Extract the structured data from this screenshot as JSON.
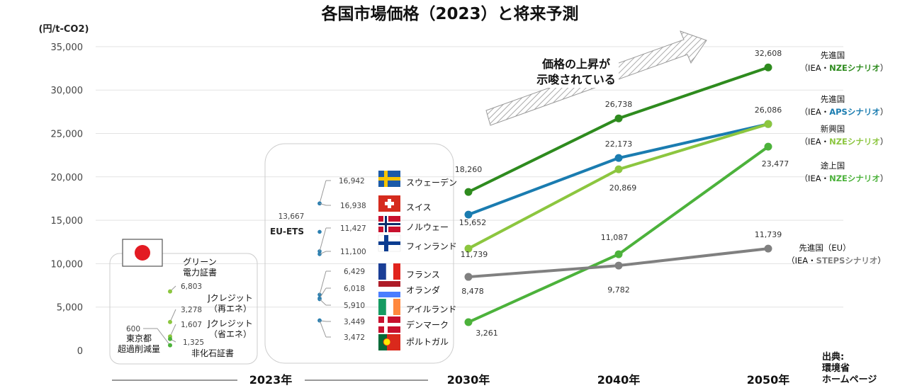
{
  "chart_data": {
    "type": "line",
    "title": "各国市場価格（2023）と将来予測",
    "unit_label": "(円/t-CO2)",
    "ylim": [
      0,
      35000
    ],
    "yticks": [
      "35,000",
      "30,000",
      "25,000",
      "20,000",
      "15,000",
      "10,000",
      "5,000",
      "0"
    ],
    "categories": [
      "2023年",
      "2030年",
      "2040年",
      "2050年"
    ],
    "series": [
      {
        "name": "先進国（IEA・NZEシナリオ）",
        "name_parts": [
          "先進国",
          "（IEA・",
          "NZEシナリオ",
          "）"
        ],
        "color": "#2e8b1e",
        "x": [
          "2030年",
          "2040年",
          "2050年"
        ],
        "values": [
          18260,
          26738,
          32608
        ],
        "labels": [
          "18,260",
          "26,738",
          "32,608"
        ]
      },
      {
        "name": "先進国（IEA・APSシナリオ）",
        "name_parts": [
          "先進国",
          "（IEA・",
          "APSシナリオ",
          "）"
        ],
        "color": "#1a7cb0",
        "x": [
          "2030年",
          "2040年",
          "2050年"
        ],
        "values": [
          15652,
          22173,
          26086
        ],
        "labels": [
          "15,652",
          "22,173",
          "26,086"
        ]
      },
      {
        "name": "新興国（IEA・NZEシナリオ）",
        "name_parts": [
          "新興国",
          "（IEA・",
          "NZEシナリオ",
          "）"
        ],
        "color": "#8cc63f",
        "x": [
          "2030年",
          "2040年",
          "2050年"
        ],
        "values": [
          11739,
          20869,
          26086
        ],
        "labels": [
          "11,739",
          "20,869",
          ""
        ]
      },
      {
        "name": "途上国（IEA・NZEシナリオ）",
        "name_parts": [
          "途上国",
          "（IEA・",
          "NZEシナリオ",
          "）"
        ],
        "color": "#4cb23b",
        "x": [
          "2030年",
          "2040年",
          "2050年"
        ],
        "values": [
          3261,
          11087,
          23477
        ],
        "labels": [
          "3,261",
          "11,087",
          "23,477"
        ]
      },
      {
        "name": "先進国（EU）（IEA・STEPSシナリオ）",
        "name_parts": [
          "先進国（EU）",
          "（IEA・",
          "STEPSシナリオ",
          "）"
        ],
        "color": "#808080",
        "x": [
          "2030年",
          "2040年",
          "2050年"
        ],
        "values": [
          8478,
          9782,
          11739
        ],
        "labels": [
          "8,478",
          "9,782",
          "11,739"
        ]
      }
    ],
    "arrow_text": [
      "価格の上昇が",
      "示唆されている"
    ],
    "japan": [
      {
        "name": "グリーン電力証書",
        "name_lines": [
          "グリーン",
          "電力証書"
        ],
        "value": 6803,
        "label": "6,803"
      },
      {
        "name": "Jクレジット（再エネ）",
        "name_lines": [
          "Jクレジット",
          "（再エネ）"
        ],
        "value": 3278,
        "label": "3,278"
      },
      {
        "name": "Jクレジット（省エネ）",
        "name_lines": [
          "Jクレジット",
          "（省エネ）"
        ],
        "value": 1607,
        "label": "1,607"
      },
      {
        "name": "非化石証書",
        "name_lines": [
          "非化石証書"
        ],
        "value": 1325,
        "label": "1,325"
      },
      {
        "name": "東京都超過削減量",
        "name_lines": [
          "東京都",
          "超過削減量"
        ],
        "value": 600,
        "label": "600"
      }
    ],
    "eu": [
      {
        "name": "スウェーデン",
        "value": 16942,
        "label": "16,942"
      },
      {
        "name": "スイス",
        "value": 16938,
        "label": "16,938"
      },
      {
        "name": "EU-ETS",
        "value": 13667,
        "label": "13,667"
      },
      {
        "name": "ノルウェー",
        "value": 11427,
        "label": "11,427"
      },
      {
        "name": "フィンランド",
        "value": 11100,
        "label": "11,100"
      },
      {
        "name": "フランス",
        "value": 6429,
        "label": "6,429"
      },
      {
        "name": "オランダ",
        "value": 6018,
        "label": "6,018"
      },
      {
        "name": "アイルランド",
        "value": 5910,
        "label": "5,910"
      },
      {
        "name": "デンマーク",
        "value": 3449,
        "label": "3,449"
      },
      {
        "name": "ポルトガル",
        "value": 3472,
        "label": "3,472"
      }
    ],
    "source": [
      "出典:",
      "環境省",
      "ホームページ"
    ],
    "grid": true
  }
}
